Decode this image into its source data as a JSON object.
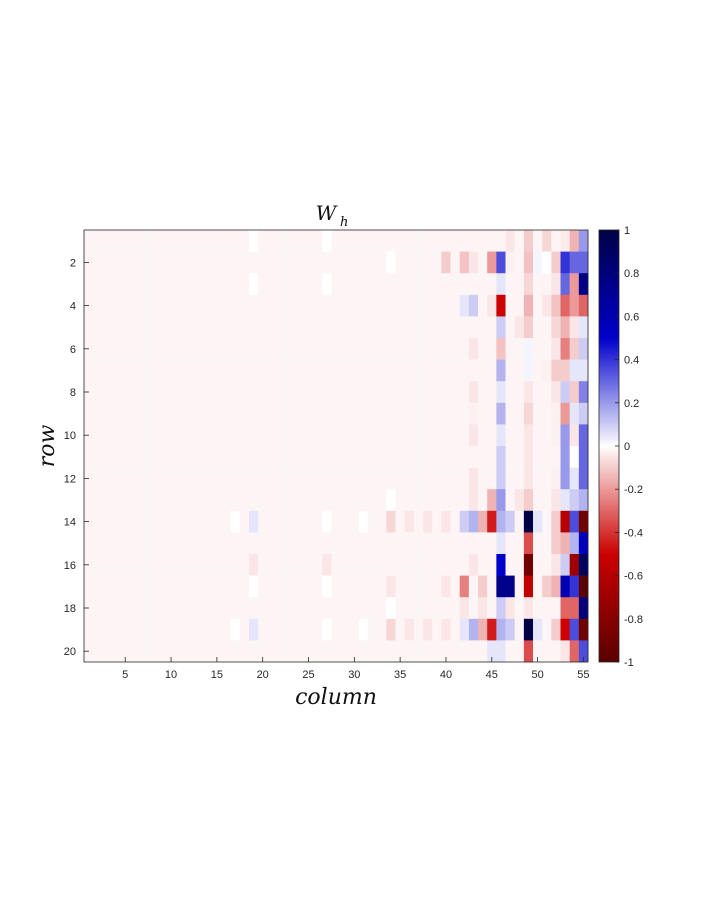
{
  "chart_data": {
    "type": "heatmap",
    "title": "W",
    "title_subscript": "h",
    "xlabel": "column",
    "ylabel": "row",
    "n_rows": 20,
    "n_cols": 55,
    "x_ticks": [
      5,
      10,
      15,
      20,
      25,
      30,
      35,
      40,
      45,
      50,
      55
    ],
    "y_ticks": [
      2,
      4,
      6,
      8,
      10,
      12,
      14,
      16,
      18,
      20
    ],
    "colorbar": {
      "range": [
        -1,
        1
      ],
      "ticks": [
        1,
        0.8,
        0.6,
        0.4,
        0.2,
        0,
        -0.2,
        -0.4,
        -0.6,
        -0.8,
        -1
      ],
      "tick_labels": [
        "1",
        "0.8",
        "0.6",
        "0.4",
        "0.2",
        "0",
        "-0.2",
        "-0.4",
        "-0.6",
        "-0.8",
        "-1"
      ],
      "colormap": "red-white-blue",
      "colors": {
        "neg_end": "#5a0000",
        "neg_mid": "#cc0000",
        "zero": "#ffffff",
        "pos_mid": "#0000cc",
        "pos_end": "#000046"
      }
    },
    "background_value": -0.02,
    "cells": [
      {
        "row": 1,
        "col": 19,
        "value": 0.0
      },
      {
        "row": 1,
        "col": 27,
        "value": 0.0
      },
      {
        "row": 1,
        "col": 47,
        "value": -0.05
      },
      {
        "row": 1,
        "col": 49,
        "value": -0.1
      },
      {
        "row": 1,
        "col": 51,
        "value": -0.08
      },
      {
        "row": 1,
        "col": 53,
        "value": -0.04
      },
      {
        "row": 1,
        "col": 54,
        "value": -0.15
      },
      {
        "row": 1,
        "col": 55,
        "value": 0.2
      },
      {
        "row": 2,
        "col": 34,
        "value": 0.0
      },
      {
        "row": 2,
        "col": 40,
        "value": -0.1
      },
      {
        "row": 2,
        "col": 42,
        "value": -0.12
      },
      {
        "row": 2,
        "col": 43,
        "value": -0.05
      },
      {
        "row": 2,
        "col": 45,
        "value": -0.2
      },
      {
        "row": 2,
        "col": 46,
        "value": 0.35
      },
      {
        "row": 2,
        "col": 47,
        "value": -0.03
      },
      {
        "row": 2,
        "col": 49,
        "value": -0.12
      },
      {
        "row": 2,
        "col": 50,
        "value": 0.02
      },
      {
        "row": 2,
        "col": 51,
        "value": 0.0
      },
      {
        "row": 2,
        "col": 52,
        "value": -0.1
      },
      {
        "row": 2,
        "col": 53,
        "value": 0.4
      },
      {
        "row": 2,
        "col": 54,
        "value": 0.3
      },
      {
        "row": 2,
        "col": 55,
        "value": 0.3
      },
      {
        "row": 3,
        "col": 19,
        "value": 0.0
      },
      {
        "row": 3,
        "col": 27,
        "value": 0.0
      },
      {
        "row": 3,
        "col": 46,
        "value": 0.05
      },
      {
        "row": 3,
        "col": 49,
        "value": -0.08
      },
      {
        "row": 3,
        "col": 52,
        "value": -0.05
      },
      {
        "row": 3,
        "col": 53,
        "value": 0.3
      },
      {
        "row": 3,
        "col": 54,
        "value": -0.2
      },
      {
        "row": 3,
        "col": 55,
        "value": 0.75
      },
      {
        "row": 4,
        "col": 42,
        "value": 0.05
      },
      {
        "row": 4,
        "col": 43,
        "value": 0.1
      },
      {
        "row": 4,
        "col": 45,
        "value": -0.05
      },
      {
        "row": 4,
        "col": 46,
        "value": -0.5
      },
      {
        "row": 4,
        "col": 49,
        "value": -0.15
      },
      {
        "row": 4,
        "col": 51,
        "value": -0.05
      },
      {
        "row": 4,
        "col": 52,
        "value": -0.12
      },
      {
        "row": 4,
        "col": 53,
        "value": -0.3
      },
      {
        "row": 4,
        "col": 54,
        "value": -0.2
      },
      {
        "row": 4,
        "col": 55,
        "value": -0.3
      },
      {
        "row": 5,
        "col": 46,
        "value": 0.1
      },
      {
        "row": 5,
        "col": 48,
        "value": -0.05
      },
      {
        "row": 5,
        "col": 49,
        "value": -0.1
      },
      {
        "row": 5,
        "col": 52,
        "value": -0.08
      },
      {
        "row": 5,
        "col": 53,
        "value": -0.15
      },
      {
        "row": 5,
        "col": 54,
        "value": -0.05
      },
      {
        "row": 5,
        "col": 55,
        "value": 0.05
      },
      {
        "row": 6,
        "col": 43,
        "value": -0.05
      },
      {
        "row": 6,
        "col": 46,
        "value": -0.12
      },
      {
        "row": 6,
        "col": 49,
        "value": 0.02
      },
      {
        "row": 6,
        "col": 52,
        "value": -0.05
      },
      {
        "row": 6,
        "col": 53,
        "value": -0.25
      },
      {
        "row": 6,
        "col": 54,
        "value": -0.1
      },
      {
        "row": 6,
        "col": 55,
        "value": 0.1
      },
      {
        "row": 7,
        "col": 46,
        "value": 0.15
      },
      {
        "row": 7,
        "col": 49,
        "value": 0.02
      },
      {
        "row": 7,
        "col": 51,
        "value": -0.03
      },
      {
        "row": 7,
        "col": 52,
        "value": -0.1
      },
      {
        "row": 7,
        "col": 53,
        "value": -0.1
      },
      {
        "row": 7,
        "col": 54,
        "value": 0.05
      },
      {
        "row": 7,
        "col": 55,
        "value": 0.05
      },
      {
        "row": 8,
        "col": 43,
        "value": -0.05
      },
      {
        "row": 8,
        "col": 46,
        "value": 0.05
      },
      {
        "row": 8,
        "col": 49,
        "value": -0.05
      },
      {
        "row": 8,
        "col": 52,
        "value": -0.05
      },
      {
        "row": 8,
        "col": 53,
        "value": 0.1
      },
      {
        "row": 8,
        "col": 54,
        "value": -0.1
      },
      {
        "row": 8,
        "col": 55,
        "value": 0.25
      },
      {
        "row": 9,
        "col": 43,
        "value": -0.03
      },
      {
        "row": 9,
        "col": 46,
        "value": 0.15
      },
      {
        "row": 9,
        "col": 49,
        "value": -0.08
      },
      {
        "row": 9,
        "col": 52,
        "value": -0.03
      },
      {
        "row": 9,
        "col": 53,
        "value": -0.2
      },
      {
        "row": 9,
        "col": 54,
        "value": 0.05
      },
      {
        "row": 9,
        "col": 55,
        "value": 0.1
      },
      {
        "row": 10,
        "col": 43,
        "value": -0.05
      },
      {
        "row": 10,
        "col": 46,
        "value": 0.05
      },
      {
        "row": 10,
        "col": 49,
        "value": -0.05
      },
      {
        "row": 10,
        "col": 52,
        "value": -0.03
      },
      {
        "row": 10,
        "col": 53,
        "value": 0.2
      },
      {
        "row": 10,
        "col": 54,
        "value": -0.05
      },
      {
        "row": 10,
        "col": 55,
        "value": 0.3
      },
      {
        "row": 11,
        "col": 46,
        "value": 0.1
      },
      {
        "row": 11,
        "col": 49,
        "value": -0.05
      },
      {
        "row": 11,
        "col": 53,
        "value": 0.2
      },
      {
        "row": 11,
        "col": 54,
        "value": 0.0
      },
      {
        "row": 11,
        "col": 55,
        "value": 0.3
      },
      {
        "row": 12,
        "col": 43,
        "value": -0.05
      },
      {
        "row": 12,
        "col": 46,
        "value": 0.1
      },
      {
        "row": 12,
        "col": 49,
        "value": -0.05
      },
      {
        "row": 12,
        "col": 52,
        "value": -0.03
      },
      {
        "row": 12,
        "col": 53,
        "value": 0.2
      },
      {
        "row": 12,
        "col": 54,
        "value": 0.05
      },
      {
        "row": 12,
        "col": 55,
        "value": 0.3
      },
      {
        "row": 13,
        "col": 34,
        "value": 0.0
      },
      {
        "row": 13,
        "col": 43,
        "value": -0.05
      },
      {
        "row": 13,
        "col": 45,
        "value": -0.15
      },
      {
        "row": 13,
        "col": 46,
        "value": 0.2
      },
      {
        "row": 13,
        "col": 48,
        "value": -0.05
      },
      {
        "row": 13,
        "col": 49,
        "value": -0.1
      },
      {
        "row": 13,
        "col": 52,
        "value": -0.05
      },
      {
        "row": 13,
        "col": 53,
        "value": 0.05
      },
      {
        "row": 13,
        "col": 54,
        "value": 0.1
      },
      {
        "row": 13,
        "col": 55,
        "value": 0.15
      },
      {
        "row": 14,
        "col": 17,
        "value": 0.0
      },
      {
        "row": 14,
        "col": 19,
        "value": 0.05
      },
      {
        "row": 14,
        "col": 27,
        "value": 0.0
      },
      {
        "row": 14,
        "col": 31,
        "value": 0.0
      },
      {
        "row": 14,
        "col": 34,
        "value": -0.08
      },
      {
        "row": 14,
        "col": 36,
        "value": -0.05
      },
      {
        "row": 14,
        "col": 38,
        "value": -0.05
      },
      {
        "row": 14,
        "col": 40,
        "value": -0.05
      },
      {
        "row": 14,
        "col": 42,
        "value": 0.1
      },
      {
        "row": 14,
        "col": 43,
        "value": 0.15
      },
      {
        "row": 14,
        "col": 44,
        "value": -0.15
      },
      {
        "row": 14,
        "col": 45,
        "value": -0.45
      },
      {
        "row": 14,
        "col": 46,
        "value": 0.15
      },
      {
        "row": 14,
        "col": 47,
        "value": 0.1
      },
      {
        "row": 14,
        "col": 49,
        "value": 1.0
      },
      {
        "row": 14,
        "col": 50,
        "value": 0.05
      },
      {
        "row": 14,
        "col": 52,
        "value": -0.1
      },
      {
        "row": 14,
        "col": 53,
        "value": -0.6
      },
      {
        "row": 14,
        "col": 54,
        "value": 0.35
      },
      {
        "row": 14,
        "col": 55,
        "value": -0.9
      },
      {
        "row": 15,
        "col": 46,
        "value": 0.05
      },
      {
        "row": 15,
        "col": 49,
        "value": -0.35
      },
      {
        "row": 15,
        "col": 52,
        "value": -0.1
      },
      {
        "row": 15,
        "col": 53,
        "value": -0.15
      },
      {
        "row": 15,
        "col": 54,
        "value": 0.15
      },
      {
        "row": 15,
        "col": 55,
        "value": 0.55
      },
      {
        "row": 16,
        "col": 19,
        "value": -0.05
      },
      {
        "row": 16,
        "col": 27,
        "value": -0.05
      },
      {
        "row": 16,
        "col": 43,
        "value": -0.05
      },
      {
        "row": 16,
        "col": 46,
        "value": 0.5
      },
      {
        "row": 16,
        "col": 49,
        "value": -0.9
      },
      {
        "row": 16,
        "col": 52,
        "value": -0.05
      },
      {
        "row": 16,
        "col": 53,
        "value": 0.1
      },
      {
        "row": 16,
        "col": 54,
        "value": -0.7
      },
      {
        "row": 16,
        "col": 55,
        "value": 0.9
      },
      {
        "row": 17,
        "col": 19,
        "value": 0.0
      },
      {
        "row": 17,
        "col": 27,
        "value": 0.0
      },
      {
        "row": 17,
        "col": 34,
        "value": -0.05
      },
      {
        "row": 17,
        "col": 40,
        "value": -0.05
      },
      {
        "row": 17,
        "col": 42,
        "value": -0.25
      },
      {
        "row": 17,
        "col": 44,
        "value": -0.1
      },
      {
        "row": 17,
        "col": 46,
        "value": 0.75
      },
      {
        "row": 17,
        "col": 47,
        "value": 0.75
      },
      {
        "row": 17,
        "col": 49,
        "value": -0.55
      },
      {
        "row": 17,
        "col": 51,
        "value": -0.1
      },
      {
        "row": 17,
        "col": 52,
        "value": -0.15
      },
      {
        "row": 17,
        "col": 53,
        "value": 0.6
      },
      {
        "row": 17,
        "col": 54,
        "value": 0.4
      },
      {
        "row": 17,
        "col": 55,
        "value": -1.0
      },
      {
        "row": 18,
        "col": 34,
        "value": 0.0
      },
      {
        "row": 18,
        "col": 42,
        "value": -0.05
      },
      {
        "row": 18,
        "col": 44,
        "value": -0.05
      },
      {
        "row": 18,
        "col": 46,
        "value": 0.1
      },
      {
        "row": 18,
        "col": 47,
        "value": -0.05
      },
      {
        "row": 18,
        "col": 49,
        "value": -0.05
      },
      {
        "row": 18,
        "col": 53,
        "value": -0.3
      },
      {
        "row": 18,
        "col": 54,
        "value": -0.3
      },
      {
        "row": 18,
        "col": 55,
        "value": 0.8
      },
      {
        "row": 19,
        "col": 17,
        "value": 0.0
      },
      {
        "row": 19,
        "col": 19,
        "value": 0.05
      },
      {
        "row": 19,
        "col": 27,
        "value": 0.0
      },
      {
        "row": 19,
        "col": 31,
        "value": 0.0
      },
      {
        "row": 19,
        "col": 34,
        "value": -0.08
      },
      {
        "row": 19,
        "col": 36,
        "value": -0.05
      },
      {
        "row": 19,
        "col": 38,
        "value": -0.05
      },
      {
        "row": 19,
        "col": 40,
        "value": -0.05
      },
      {
        "row": 19,
        "col": 42,
        "value": 0.05
      },
      {
        "row": 19,
        "col": 43,
        "value": 0.15
      },
      {
        "row": 19,
        "col": 44,
        "value": -0.15
      },
      {
        "row": 19,
        "col": 45,
        "value": -0.45
      },
      {
        "row": 19,
        "col": 46,
        "value": 0.15
      },
      {
        "row": 19,
        "col": 47,
        "value": 0.1
      },
      {
        "row": 19,
        "col": 49,
        "value": 1.0
      },
      {
        "row": 19,
        "col": 50,
        "value": 0.05
      },
      {
        "row": 19,
        "col": 52,
        "value": -0.1
      },
      {
        "row": 19,
        "col": 53,
        "value": -0.5
      },
      {
        "row": 19,
        "col": 54,
        "value": 0.35
      },
      {
        "row": 19,
        "col": 55,
        "value": -0.9
      },
      {
        "row": 20,
        "col": 45,
        "value": 0.05
      },
      {
        "row": 20,
        "col": 46,
        "value": 0.05
      },
      {
        "row": 20,
        "col": 49,
        "value": -0.35
      },
      {
        "row": 20,
        "col": 53,
        "value": -0.05
      },
      {
        "row": 20,
        "col": 54,
        "value": -0.3
      },
      {
        "row": 20,
        "col": 55,
        "value": 0.35
      }
    ]
  }
}
